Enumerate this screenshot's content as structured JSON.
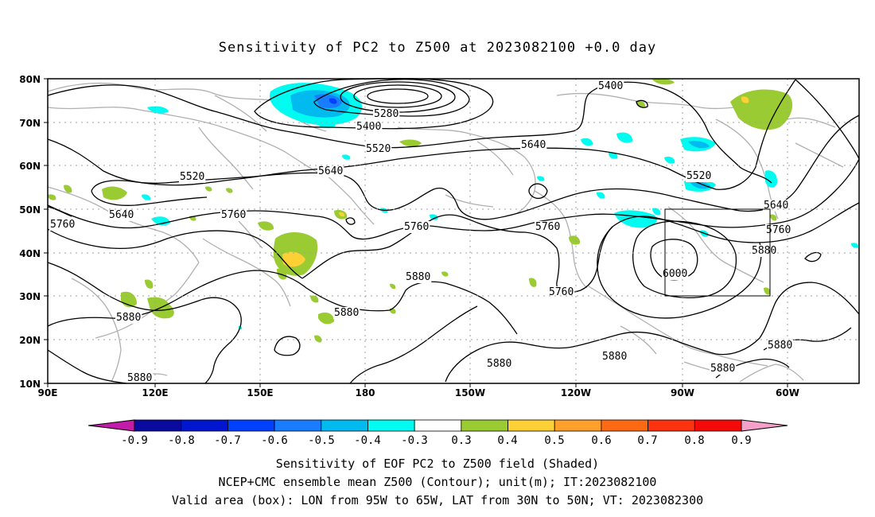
{
  "title": "Sensitivity of PC2 to Z500 at 2023082100 +0.0 day",
  "lat_labels": [
    "80N",
    "70N",
    "60N",
    "50N",
    "40N",
    "30N",
    "20N",
    "10N"
  ],
  "lon_labels": [
    "90E",
    "120E",
    "150E",
    "180",
    "150W",
    "120W",
    "90W",
    "60W"
  ],
  "colorbar": {
    "labels": [
      "-0.9",
      "-0.8",
      "-0.7",
      "-0.6",
      "-0.5",
      "-0.4",
      "-0.3",
      "0.3",
      "0.4",
      "0.5",
      "0.6",
      "0.7",
      "0.8",
      "0.9"
    ],
    "colors": [
      "#c21ca8",
      "#0a0a9e",
      "#0016cf",
      "#0040ff",
      "#1a7dff",
      "#00baf0",
      "#00fbf0",
      "#ffffff",
      "#9acb32",
      "#fdd035",
      "#fea02b",
      "#fe6a14",
      "#fd3310",
      "#f50a0a",
      "#f5a0c8"
    ]
  },
  "contour_labels": [
    {
      "text": "5400"
    },
    {
      "text": "5280"
    },
    {
      "text": "5400"
    },
    {
      "text": "5520"
    },
    {
      "text": "5640"
    },
    {
      "text": "5520"
    },
    {
      "text": "5640"
    },
    {
      "text": "5520"
    },
    {
      "text": "5640"
    },
    {
      "text": "5760"
    },
    {
      "text": "5640"
    },
    {
      "text": "5760"
    },
    {
      "text": "5760"
    },
    {
      "text": "5760"
    },
    {
      "text": "5760"
    },
    {
      "text": "5880"
    },
    {
      "text": "5880"
    },
    {
      "text": "6000"
    },
    {
      "text": "5880"
    },
    {
      "text": "5760"
    },
    {
      "text": "5880"
    },
    {
      "text": "5880"
    },
    {
      "text": "5880"
    },
    {
      "text": "5880"
    },
    {
      "text": "5880"
    },
    {
      "text": "5880"
    }
  ],
  "valid_area": {
    "lon_from": "95W",
    "lon_to": "65W",
    "lat_from": "30N",
    "lat_to": "50N"
  },
  "captions": {
    "line1": "Sensitivity of EOF PC2 to Z500 field (Shaded)",
    "line2": "NCEP+CMC ensemble mean Z500 (Contour); unit(m); IT:2023082100",
    "line3": "Valid area (box): LON from 95W to 65W, LAT from 30N to 50N; VT: 2023082300"
  }
}
